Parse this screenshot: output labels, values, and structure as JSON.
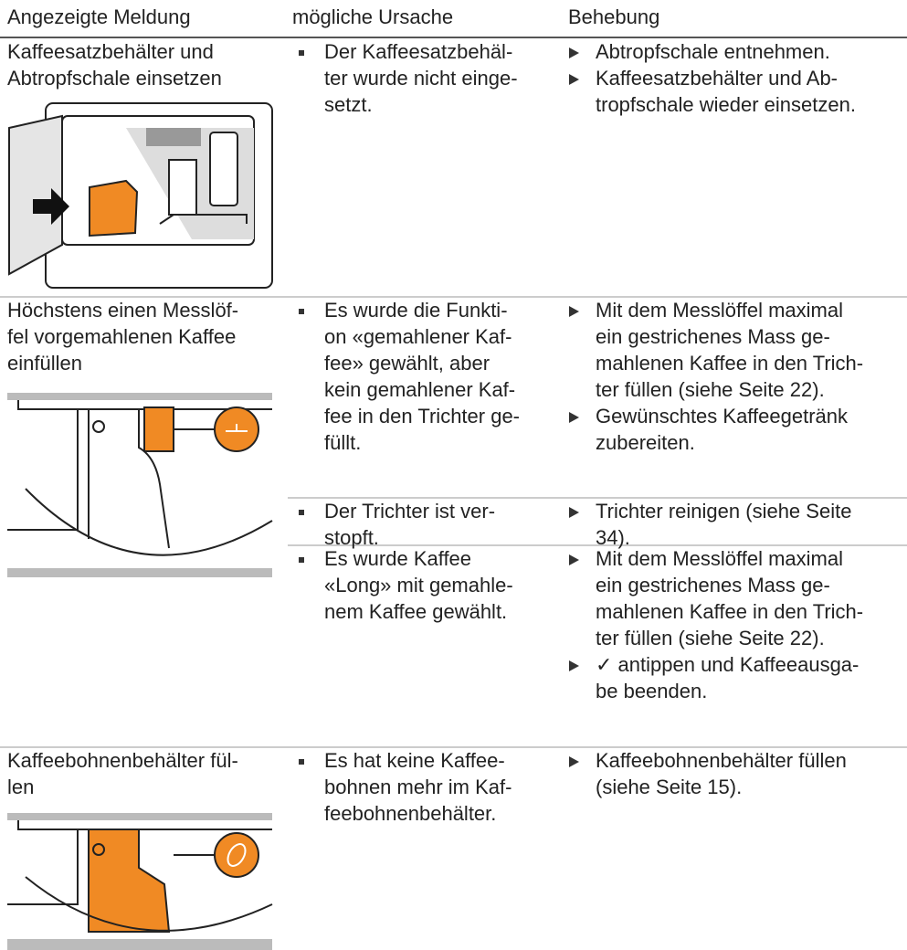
{
  "table": {
    "headers": [
      "Angezeigte Meldung",
      "mögliche Ursache",
      "Behebung"
    ],
    "rows": [
      {
        "message": [
          "Kaffeesatzbehälter und",
          "Abtropfschale einsetzen"
        ],
        "causes": [
          {
            "cause": [
              "Der Kaffeesatzbehäl-",
              "ter wurde nicht einge-",
              "setzt."
            ],
            "remedies": [
              [
                "Abtropfschale entnehmen."
              ],
              [
                "Kaffeesatzbehälter und Ab-",
                "tropfschale wieder einsetzen."
              ]
            ]
          }
        ]
      },
      {
        "message": [
          "Höchstens einen Messlöf-",
          "fel vorgemahlenen Kaffee",
          "einfüllen"
        ],
        "causes": [
          {
            "cause": [
              "Es wurde die Funkti-",
              "on «gemahlener Kaf-",
              "fee» gewählt, aber",
              "kein gemahlener Kaf-",
              "fee in den Trichter ge-",
              "füllt."
            ],
            "remedies": [
              [
                "Mit dem Messlöffel maximal",
                "ein gestrichenes Mass ge-",
                "mahlenen Kaffee in den Trich-",
                "ter füllen (siehe Seite 22)."
              ],
              [
                "Gewünschtes Kaffeegetränk",
                "zubereiten."
              ]
            ]
          },
          {
            "cause": [
              "Der Trichter ist ver-",
              "stopft."
            ],
            "remedies": [
              [
                "Trichter reinigen (siehe Seite",
                "34)."
              ]
            ]
          },
          {
            "cause": [
              "Es wurde Kaffee",
              "«Long» mit gemahle-",
              "nem Kaffee gewählt."
            ],
            "remedies": [
              [
                "Mit dem Messlöffel maximal",
                "ein gestrichenes Mass ge-",
                "mahlenen Kaffee in den Trich-",
                "ter füllen (siehe Seite 22)."
              ],
              [
                "✓ antippen und Kaffeeausga-",
                "be beenden."
              ]
            ]
          }
        ]
      },
      {
        "message": [
          "Kaffeebohnenbehälter fül-",
          "len"
        ],
        "causes": [
          {
            "cause": [
              "Es hat keine Kaffee-",
              "bohnen mehr im Kaf-",
              "feebohnenbehälter."
            ],
            "remedies": [
              [
                "Kaffeebohnenbehälter füllen",
                "(siehe Seite 15)."
              ]
            ]
          }
        ]
      }
    ]
  }
}
